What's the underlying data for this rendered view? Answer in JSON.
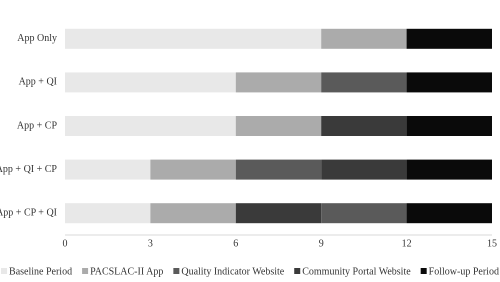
{
  "chart_data": {
    "type": "stacked-bar-horizontal",
    "categories": [
      "App Only",
      "App + QI",
      "App + CP",
      "App + QI + CP",
      "App + CP + QI"
    ],
    "series": [
      {
        "name": "Baseline Period",
        "color": "#e8e8e8"
      },
      {
        "name": "PACSLAC-II App",
        "color": "#ababab"
      },
      {
        "name": "Quality Indicator Website",
        "color": "#5a5a5a"
      },
      {
        "name": "Community Portal Website",
        "color": "#3a3a3a"
      },
      {
        "name": "Follow-up Period",
        "color": "#0a0a0a"
      }
    ],
    "segments": [
      [
        {
          "name": "Baseline Period",
          "value": 9
        },
        {
          "name": "PACSLAC-II App",
          "value": 3
        },
        {
          "name": "Follow-up Period",
          "value": 3
        }
      ],
      [
        {
          "name": "Baseline Period",
          "value": 6
        },
        {
          "name": "PACSLAC-II App",
          "value": 3
        },
        {
          "name": "Quality Indicator Website",
          "value": 3
        },
        {
          "name": "Follow-up Period",
          "value": 3
        }
      ],
      [
        {
          "name": "Baseline Period",
          "value": 6
        },
        {
          "name": "PACSLAC-II App",
          "value": 3
        },
        {
          "name": "Community Portal Website",
          "value": 3
        },
        {
          "name": "Follow-up Period",
          "value": 3
        }
      ],
      [
        {
          "name": "Baseline Period",
          "value": 3
        },
        {
          "name": "PACSLAC-II App",
          "value": 3
        },
        {
          "name": "Quality Indicator Website",
          "value": 3
        },
        {
          "name": "Community Portal Website",
          "value": 3
        },
        {
          "name": "Follow-up Period",
          "value": 3
        }
      ],
      [
        {
          "name": "Baseline Period",
          "value": 3
        },
        {
          "name": "PACSLAC-II App",
          "value": 3
        },
        {
          "name": "Community Portal Website",
          "value": 3
        },
        {
          "name": "Quality Indicator Website",
          "value": 3
        },
        {
          "name": "Follow-up Period",
          "value": 3
        }
      ]
    ],
    "xlim": [
      0,
      15
    ],
    "xticks": [
      0,
      3,
      6,
      9,
      12,
      15
    ],
    "grid": false,
    "legend": "bottom"
  }
}
